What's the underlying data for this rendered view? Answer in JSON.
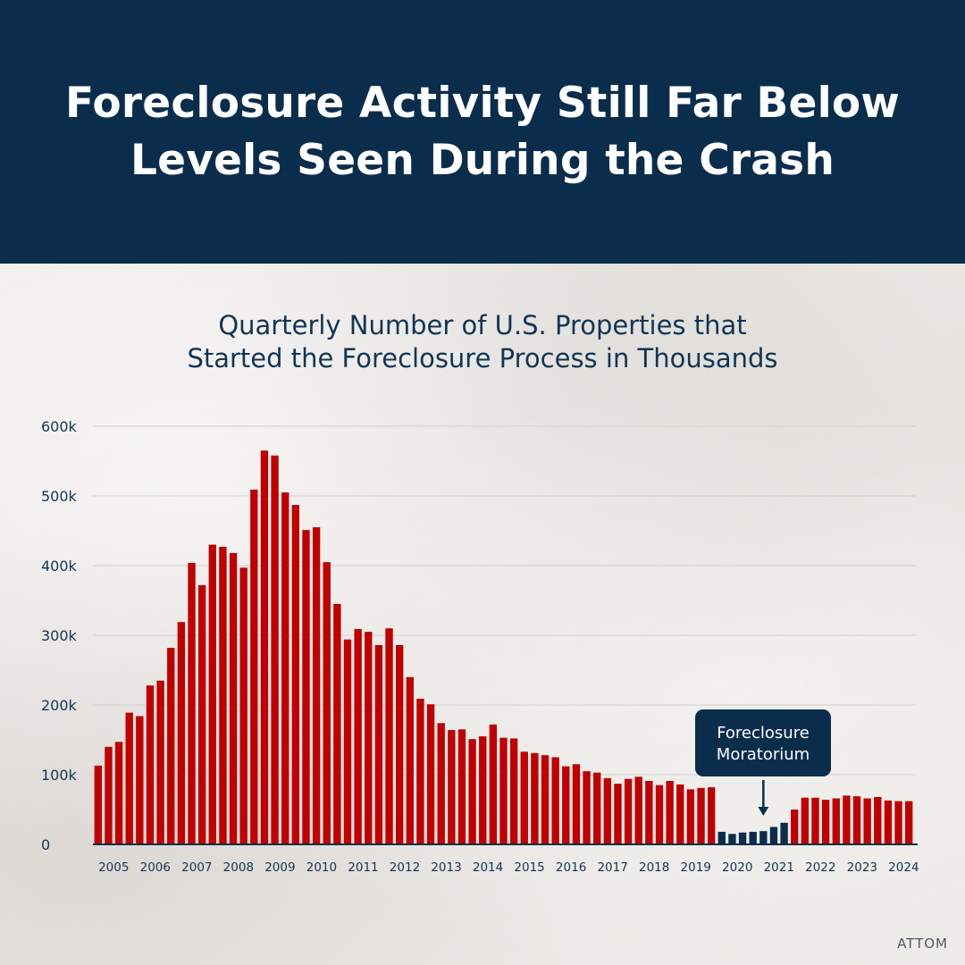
{
  "header": {
    "title": "Foreclosure Activity Still Far Below\nLevels Seen During the Crash"
  },
  "source": "ATTOM",
  "colors": {
    "header_bg": "#0b2d4c",
    "bar_red": "#c00000",
    "bar_navy": "#0b2d4c",
    "text_navy": "#123556"
  },
  "annotation": {
    "label": "Foreclosure\nMoratorium",
    "points_to_category": "2021 Q1"
  },
  "chart_data": {
    "type": "bar",
    "title": "Quarterly Number of U.S. Properties that\nStarted the Foreclosure Process in Thousands",
    "xlabel": "",
    "ylabel": "",
    "ylim": [
      0,
      600000
    ],
    "y_ticks": [
      0,
      100000,
      200000,
      300000,
      400000,
      500000,
      600000
    ],
    "y_tick_labels": [
      "0",
      "100k",
      "200k",
      "300k",
      "400k",
      "500k",
      "600k"
    ],
    "x_year_labels": [
      "2005",
      "2006",
      "2007",
      "2008",
      "2009",
      "2010",
      "2011",
      "2012",
      "2013",
      "2014",
      "2015",
      "2016",
      "2017",
      "2018",
      "2019",
      "2020",
      "2021",
      "2022",
      "2023",
      "2024"
    ],
    "grid": true,
    "legend": "none",
    "categories": [
      "2005 Q1",
      "2005 Q2",
      "2005 Q3",
      "2005 Q4",
      "2006 Q1",
      "2006 Q2",
      "2006 Q3",
      "2006 Q4",
      "2007 Q1",
      "2007 Q2",
      "2007 Q3",
      "2007 Q4",
      "2008 Q1",
      "2008 Q2",
      "2008 Q3",
      "2008 Q4",
      "2009 Q1",
      "2009 Q2",
      "2009 Q3",
      "2009 Q4",
      "2010 Q1",
      "2010 Q2",
      "2010 Q3",
      "2010 Q4",
      "2011 Q1",
      "2011 Q2",
      "2011 Q3",
      "2011 Q4",
      "2012 Q1",
      "2012 Q2",
      "2012 Q3",
      "2012 Q4",
      "2013 Q1",
      "2013 Q2",
      "2013 Q3",
      "2013 Q4",
      "2014 Q1",
      "2014 Q2",
      "2014 Q3",
      "2014 Q4",
      "2015 Q1",
      "2015 Q2",
      "2015 Q3",
      "2015 Q4",
      "2016 Q1",
      "2016 Q2",
      "2016 Q3",
      "2016 Q4",
      "2017 Q1",
      "2017 Q2",
      "2017 Q3",
      "2017 Q4",
      "2018 Q1",
      "2018 Q2",
      "2018 Q3",
      "2018 Q4",
      "2019 Q1",
      "2019 Q2",
      "2019 Q3",
      "2019 Q4",
      "2020 Q1",
      "2020 Q2",
      "2020 Q3",
      "2020 Q4",
      "2021 Q1",
      "2021 Q2",
      "2021 Q3",
      "2021 Q4",
      "2022 Q1",
      "2022 Q2",
      "2022 Q3",
      "2022 Q4",
      "2023 Q1",
      "2023 Q2",
      "2023 Q3",
      "2023 Q4",
      "2024 Q1",
      "2024 Q2",
      "2024 Q3"
    ],
    "values": [
      113000,
      140000,
      147000,
      189000,
      184000,
      228000,
      235000,
      282000,
      319000,
      404000,
      372000,
      430000,
      427000,
      418000,
      397000,
      509000,
      565000,
      558000,
      505000,
      487000,
      451000,
      455000,
      405000,
      345000,
      294000,
      309000,
      305000,
      286000,
      310000,
      286000,
      240000,
      209000,
      201000,
      174000,
      164000,
      165000,
      151000,
      155000,
      172000,
      153000,
      152000,
      133000,
      131000,
      128000,
      125000,
      112000,
      115000,
      105000,
      103000,
      95000,
      87000,
      94000,
      97000,
      91000,
      85000,
      91000,
      86000,
      79000,
      81000,
      82000,
      18000,
      15000,
      17000,
      18000,
      19000,
      25000,
      31000,
      50000,
      67000,
      67000,
      64000,
      66000,
      70000,
      69000,
      66000,
      68000,
      63000,
      62000,
      62000
    ],
    "bar_color_by_category": [
      "red",
      "red",
      "red",
      "red",
      "red",
      "red",
      "red",
      "red",
      "red",
      "red",
      "red",
      "red",
      "red",
      "red",
      "red",
      "red",
      "red",
      "red",
      "red",
      "red",
      "red",
      "red",
      "red",
      "red",
      "red",
      "red",
      "red",
      "red",
      "red",
      "red",
      "red",
      "red",
      "red",
      "red",
      "red",
      "red",
      "red",
      "red",
      "red",
      "red",
      "red",
      "red",
      "red",
      "red",
      "red",
      "red",
      "red",
      "red",
      "red",
      "red",
      "red",
      "red",
      "red",
      "red",
      "red",
      "red",
      "red",
      "red",
      "red",
      "red",
      "navy",
      "navy",
      "navy",
      "navy",
      "navy",
      "navy",
      "navy",
      "red",
      "red",
      "red",
      "red",
      "red",
      "red",
      "red",
      "red",
      "red",
      "red",
      "red",
      "red"
    ]
  }
}
